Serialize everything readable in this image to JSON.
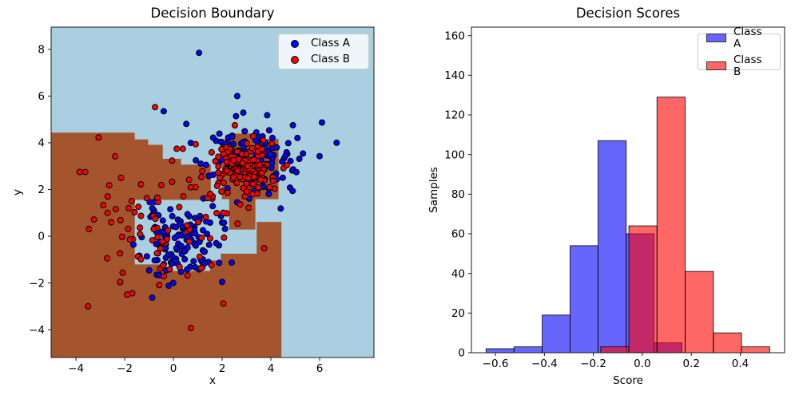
{
  "figure": {
    "background": "#ffffff"
  },
  "chart_data": [
    {
      "type": "scatter",
      "title": "Decision Boundary",
      "xlabel": "x",
      "ylabel": "y",
      "xlim": [
        -5.02,
        8.23
      ],
      "ylim": [
        -5.19,
        8.95
      ],
      "grid": false,
      "xticks": {
        "values": [
          -4,
          -2,
          0,
          2,
          4,
          6
        ],
        "labels": [
          "−4",
          "−2",
          "0",
          "2",
          "4",
          "6"
        ]
      },
      "yticks": {
        "values": [
          -4,
          -2,
          0,
          2,
          4,
          6,
          8
        ],
        "labels": [
          "−4",
          "−2",
          "0",
          "2",
          "4",
          "6",
          "8"
        ]
      },
      "legend": {
        "position": "upper right",
        "entries": [
          {
            "label": "Class A",
            "marker": "circle",
            "color": "#0404f0"
          },
          {
            "label": "Class B",
            "marker": "circle",
            "color": "#f20404"
          }
        ]
      },
      "background_regions": {
        "base_color": "#a9cfe0",
        "overlay_color": "#a5552d",
        "overlay_rects": [
          {
            "x1": -5.02,
            "x2": 4.42,
            "y1": -5.19,
            "y2": -1.5
          },
          {
            "x1": -5.02,
            "x2": -1.6,
            "y1": -1.5,
            "y2": 4.42
          },
          {
            "x1": -1.6,
            "x2": -0.34,
            "y1": -1.5,
            "y2": -1.22
          },
          {
            "x1": -1.6,
            "x2": -1.05,
            "y1": 1.57,
            "y2": 4.13
          },
          {
            "x1": -1.05,
            "x2": -0.45,
            "y1": 1.57,
            "y2": 3.9
          },
          {
            "x1": -0.45,
            "x2": 0.3,
            "y1": 1.57,
            "y2": 3.3
          },
          {
            "x1": 0.3,
            "x2": 1.52,
            "y1": 1.57,
            "y2": 3.05
          },
          {
            "x1": 1.52,
            "x2": 1.96,
            "y1": -1.5,
            "y2": -1.05
          },
          {
            "x1": 1.96,
            "x2": 3.43,
            "y1": -1.5,
            "y2": -0.76
          },
          {
            "x1": 3.43,
            "x2": 4.42,
            "y1": -1.5,
            "y2": 0.6
          },
          {
            "x1": 2.0,
            "x2": 4.3,
            "y1": 1.6,
            "y2": 4.15
          },
          {
            "x1": 2.45,
            "x2": 3.4,
            "y1": 4.15,
            "y2": 4.38
          },
          {
            "x1": 2.3,
            "x2": 3.35,
            "y1": 0.3,
            "y2": 1.6
          }
        ]
      },
      "series": [
        {
          "name": "Class A",
          "color": "#0404f0",
          "edge_color": "#000000",
          "marker_radius": 3.5,
          "seed": 11,
          "clusters": [
            {
              "cx": 0.25,
              "cy": -0.35,
              "sx": 0.8,
              "sy": 0.8,
              "n": 120
            },
            {
              "cx": 3.2,
              "cy": 3.35,
              "sx": 1.0,
              "sy": 0.85,
              "n": 126
            }
          ],
          "extra_points": [
            [
              1.05,
              7.85
            ],
            [
              -0.4,
              5.35
            ],
            [
              6.7,
              4.0
            ],
            [
              2.62,
              6.0
            ]
          ]
        },
        {
          "name": "Class B",
          "color": "#f20404",
          "edge_color": "#000000",
          "marker_radius": 3.5,
          "seed": 7,
          "clusters": [
            {
              "cx": 3.0,
              "cy": 2.95,
              "sx": 0.55,
              "sy": 0.55,
              "n": 152
            },
            {
              "cx": -0.4,
              "cy": 0.7,
              "sx": 1.6,
              "sy": 1.5,
              "n": 93
            }
          ],
          "extra_points": [
            [
              -3.62,
              2.75
            ],
            [
              -3.5,
              -3.0
            ],
            [
              0.72,
              -3.93
            ],
            [
              2.05,
              -2.88
            ],
            [
              -1.9,
              -2.5
            ]
          ]
        }
      ]
    },
    {
      "type": "bar",
      "title": "Decision Scores",
      "xlabel": "Score",
      "ylabel": "Samples",
      "xlim": [
        -0.698,
        0.581
      ],
      "ylim": [
        0,
        164.3
      ],
      "grid": false,
      "xticks": {
        "values": [
          -0.6,
          -0.4,
          -0.2,
          0.0,
          0.2,
          0.4
        ],
        "labels": [
          "−0.6",
          "−0.4",
          "−0.2",
          "0.0",
          "0.2",
          "0.4"
        ]
      },
      "yticks": {
        "values": [
          0,
          20,
          40,
          60,
          80,
          100,
          120,
          140,
          160
        ],
        "labels": [
          "0",
          "20",
          "40",
          "60",
          "80",
          "100",
          "120",
          "140",
          "160"
        ]
      },
      "legend": {
        "position": "upper right",
        "entries": [
          {
            "label": "Class A",
            "marker": "rect",
            "color": "#0000ff",
            "alpha": 0.6
          },
          {
            "label": "Class B",
            "marker": "rect",
            "color": "#ff0000",
            "alpha": 0.6
          }
        ]
      },
      "series": [
        {
          "name": "Class A",
          "color": "#0000ff",
          "alpha": 0.6,
          "edge_color": "#000000",
          "bin_edges": [
            -0.638,
            -0.524,
            -0.409,
            -0.295,
            -0.181,
            -0.066,
            0.048,
            0.162
          ],
          "counts": [
            2,
            3,
            19,
            54,
            107,
            60,
            5
          ]
        },
        {
          "name": "Class B",
          "color": "#ff0000",
          "alpha": 0.6,
          "edge_color": "#000000",
          "bin_edges": [
            -0.17,
            -0.055,
            0.06,
            0.175,
            0.29,
            0.405,
            0.52
          ],
          "counts": [
            3,
            64,
            129,
            41,
            10,
            3
          ]
        }
      ]
    }
  ]
}
